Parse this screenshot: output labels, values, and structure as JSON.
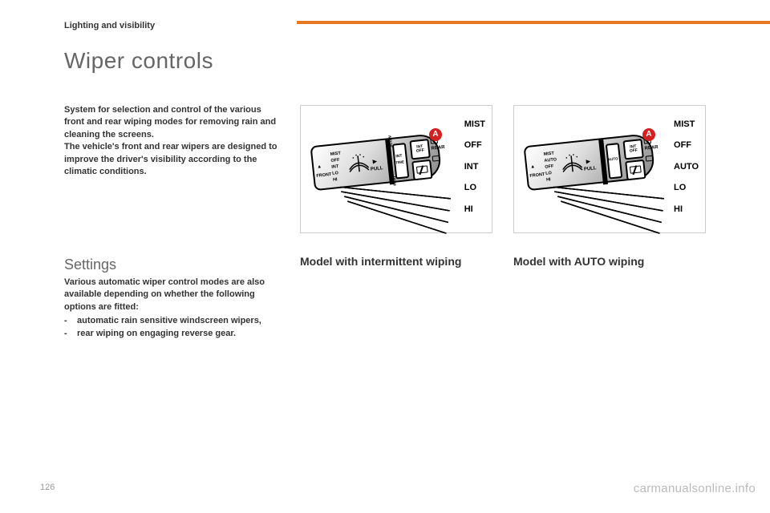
{
  "section_label": "Lighting and visibility",
  "title": "Wiper controls",
  "intro": "System for selection and control of the various front and rear wiping modes for removing rain and cleaning the screens.\nThe vehicle's front and rear wipers are designed to improve the driver's visibility according to the climatic conditions.",
  "settings": {
    "title": "Settings",
    "body": "Various automatic wiper control modes are also available depending on whether the following options are fitted:",
    "items": [
      "automatic rain sensitive windscreen wipers,",
      "rear wiping on engaging reverse gear."
    ]
  },
  "diagram_intermittent": {
    "caption": "Model with intermittent wiping",
    "badge": "A",
    "modes": [
      "MIST",
      "OFF",
      "INT",
      "LO",
      "HI"
    ],
    "stalk_labels": [
      "MIST",
      "OFF",
      "INT",
      "LO",
      "HI"
    ],
    "window_labels": [
      "INT",
      "TIME"
    ],
    "front_label": "FRONT",
    "rear_label": "REAR",
    "pull_label": "PULL",
    "slow_label": "SLOW",
    "fast_label": "FAST",
    "speed_ticks": [
      "INT",
      "OFF"
    ]
  },
  "diagram_auto": {
    "caption": "Model with AUTO wiping",
    "badge": "A",
    "modes": [
      "MIST",
      "OFF",
      "AUTO",
      "LO",
      "HI"
    ],
    "stalk_labels": [
      "MIST",
      "AUTO",
      "OFF",
      "LO",
      "HI"
    ],
    "window_label": "AUTO",
    "front_label": "FRONT",
    "rear_label": "REAR",
    "pull_label": "PULL",
    "speed_ticks": [
      "INT",
      "OFF"
    ]
  },
  "page_number": "126",
  "watermark": "carmanualsonline.info",
  "colors": {
    "accent": "#e87722",
    "badge": "#d32020",
    "text": "#333333",
    "muted": "#666666"
  }
}
